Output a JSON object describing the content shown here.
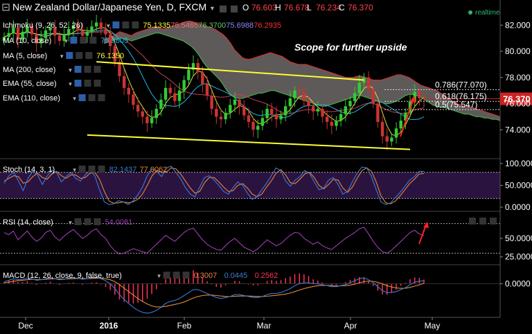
{
  "header": {
    "title": "New Zealand Dollar/Japanese Yen, D, FXCM",
    "o_label": "O",
    "o": "76.603",
    "h_label": "H",
    "h": "76.678",
    "l_label": "L",
    "l": "76.234",
    "c_label": "C",
    "c": "76.370",
    "realtime": "realtime"
  },
  "indicators": [
    {
      "label": "Ichimoku (9, 26, 52, 26)",
      "values": [
        "75.1335",
        "75.5465",
        "76.3700",
        "75.6988",
        "76.2935"
      ],
      "colors": [
        "#ffff44",
        "#ff6b6b",
        "#66cc66",
        "#8888ff",
        "#ff3333"
      ]
    },
    {
      "label": "MA (10, close)",
      "values": [
        "75.3805"
      ],
      "colors": [
        "#22b8e6"
      ]
    },
    {
      "label": "MA (5, close)",
      "values": [
        "76.1350"
      ],
      "colors": [
        "#ffff44"
      ]
    },
    {
      "label": "MA (200, close)",
      "values": [],
      "colors": []
    },
    {
      "label": "EMA (55, close)",
      "values": [],
      "colors": []
    },
    {
      "label": "EMA (110, close)",
      "values": [],
      "colors": []
    }
  ],
  "annotation": "Scope for further upside",
  "fib_levels": [
    {
      "label": "0.786(77.070)",
      "value": 77.07
    },
    {
      "label": "0.618(76.175)",
      "value": 76.175
    },
    {
      "label": "0.5(75.547)",
      "value": 75.547
    }
  ],
  "price_tag": "76.370",
  "panels": {
    "stoch": {
      "label": "Stoch (14, 3, 1)",
      "values": [
        "82.1437",
        "77.0062"
      ],
      "colors": [
        "#3a7bd5",
        "#e8883a"
      ]
    },
    "rsi": {
      "label": "RSI (14, close)",
      "values": [
        "54.0081"
      ],
      "colors": [
        "#9b3fb5"
      ]
    },
    "macd": {
      "label": "MACD (12, 26, close, 9, false, true)",
      "values": [
        "0.3007",
        "0.0445",
        "0.2562"
      ],
      "colors": [
        "#e8883a",
        "#3a7bd5",
        "#ff3355"
      ]
    }
  },
  "colors": {
    "up": "#33cc33",
    "down": "#cc3333",
    "cloud": "#6f6a6a",
    "trend": "#ffff33",
    "arrow": "#ff2222",
    "axis_text": "#ffffff"
  },
  "chart_data": [
    {
      "type": "candlestick",
      "title": "New Zealand Dollar/Japanese Yen, D, FXCM",
      "ylim": [
        72.0,
        83.5
      ],
      "y_ticks": [
        "82.000",
        "80.000",
        "78.000",
        "76.000",
        "74.000"
      ],
      "x_ticks": [
        "Dec",
        "2016",
        "Feb",
        "Mar",
        "Apr",
        "May"
      ],
      "close": [
        81.1,
        81.4,
        81.8,
        80.9,
        81.5,
        81.9,
        81.3,
        80.6,
        81.0,
        81.6,
        81.8,
        81.2,
        80.8,
        81.3,
        81.7,
        82.0,
        81.6,
        81.2,
        81.5,
        81.9,
        82.2,
        81.7,
        81.3,
        80.4,
        79.2,
        78.1,
        77.2,
        76.7,
        75.9,
        75.4,
        75.0,
        74.5,
        74.9,
        75.6,
        76.3,
        77.2,
        76.8,
        76.2,
        77.0,
        77.8,
        78.6,
        79.1,
        78.4,
        77.5,
        76.6,
        75.6,
        75.0,
        74.8,
        75.3,
        75.9,
        76.3,
        75.8,
        75.1,
        74.6,
        74.0,
        74.3,
        74.9,
        75.6,
        75.2,
        74.8,
        75.1,
        75.8,
        76.4,
        77.0,
        76.9,
        76.2,
        75.8,
        75.4,
        75.6,
        75.0,
        74.6,
        74.3,
        74.7,
        75.2,
        75.8,
        76.2,
        76.8,
        77.6,
        78.0,
        77.1,
        76.0,
        74.6,
        73.5,
        73.1,
        73.4,
        74.1,
        74.7,
        75.3,
        76.2,
        76.9,
        76.4,
        76.37
      ],
      "spans": {
        "cloud_upper": [
          80.9,
          81.0,
          81.1,
          81.3,
          81.5,
          81.4,
          81.3,
          81.2,
          81.4,
          81.5,
          81.6,
          81.7,
          81.8,
          81.9,
          81.8,
          81.7,
          81.8,
          81.9,
          82.0,
          82.1,
          82.2,
          82.3,
          82.3,
          82.2,
          82.1,
          82.0,
          81.9,
          81.8,
          81.7,
          81.5,
          81.3,
          81.0,
          80.6,
          80.1,
          79.8,
          79.5,
          79.4,
          79.4,
          79.5,
          79.6,
          79.7,
          79.8,
          79.9,
          79.8,
          79.7,
          79.6,
          79.4,
          79.2,
          79.1,
          79.0,
          79.0,
          79.0,
          78.9,
          78.8,
          78.7,
          78.6,
          78.5,
          78.4,
          78.3,
          78.2,
          78.1,
          78.0,
          78.0,
          78.0,
          78.1,
          78.1,
          78.0,
          77.9,
          77.8,
          77.8,
          77.8,
          77.9,
          78.0,
          78.1,
          78.2,
          78.2,
          78.1,
          78.0,
          77.8,
          77.6,
          77.4,
          77.3,
          77.2,
          77.1,
          77.0,
          76.8,
          76.6,
          76.4,
          76.2,
          76.0,
          75.9,
          75.8,
          75.8,
          75.7,
          75.6,
          75.5,
          75.4,
          75.3,
          75.2,
          75.1,
          75.0
        ],
        "cloud_lower": [
          80.6,
          80.7,
          80.8,
          80.9,
          81.0,
          81.0,
          80.9,
          80.8,
          80.9,
          81.0,
          81.1,
          81.2,
          81.3,
          81.4,
          81.4,
          81.3,
          81.2,
          81.1,
          81.0,
          80.9,
          80.8,
          80.6,
          80.4,
          80.1,
          79.7,
          79.2,
          78.8,
          78.5,
          78.2,
          77.9,
          77.5,
          77.0,
          76.7,
          76.5,
          76.4,
          76.4,
          76.5,
          76.6,
          76.7,
          76.8,
          76.8,
          76.9,
          77.0,
          77.0,
          76.9,
          76.8,
          76.7,
          76.6,
          76.5,
          76.4,
          76.3,
          76.2,
          76.1,
          76.0,
          75.9,
          75.8,
          75.8,
          75.9,
          76.0,
          76.1,
          76.2,
          76.3,
          76.4,
          76.5,
          76.6,
          76.6,
          76.5,
          76.4,
          76.3,
          76.2,
          76.1,
          76.0,
          76.0,
          76.1,
          76.2,
          76.4,
          76.6,
          76.7,
          76.7,
          76.6,
          76.5,
          76.3,
          76.1,
          75.9,
          75.8,
          75.7,
          75.7,
          75.6,
          75.5,
          75.4,
          75.3,
          75.2,
          75.2,
          75.1,
          75.0,
          75.0,
          74.9,
          74.9,
          74.8,
          74.8,
          74.7
        ]
      },
      "trendlines": [
        {
          "from": [
            20,
            79.2
          ],
          "to": [
            78,
            77.8
          ]
        },
        {
          "from": [
            18,
            73.6
          ],
          "to": [
            88,
            72.5
          ]
        }
      ],
      "fib_levels": [
        77.07,
        76.175,
        75.547
      ],
      "last_close": 76.37
    },
    {
      "type": "line",
      "title": "Stoch (14, 3, 1)",
      "ylim": [
        0,
        100
      ],
      "y_ticks": [
        "100.000",
        "50.0000",
        "0.0000"
      ],
      "series": [
        {
          "name": "%K",
          "values": [
            55,
            72,
            80,
            60,
            38,
            66,
            82,
            74,
            52,
            71,
            85,
            79,
            58,
            70,
            80,
            66,
            60,
            74,
            85,
            72,
            40,
            12,
            6,
            8,
            15,
            12,
            6,
            14,
            28,
            46,
            72,
            88,
            82,
            70,
            90,
            94,
            80,
            65,
            45,
            30,
            24,
            46,
            68,
            72,
            62,
            50,
            36,
            30,
            45,
            58,
            50,
            32,
            18,
            24,
            40,
            55,
            72,
            90,
            84,
            60,
            48,
            62,
            70,
            84,
            78,
            58,
            40,
            44,
            62,
            68,
            52,
            30,
            36,
            58,
            78,
            92,
            90,
            70,
            40,
            12,
            6,
            10,
            22,
            34,
            48,
            62,
            70,
            82,
            82
          ]
        },
        {
          "name": "%D",
          "values": [
            60,
            66,
            72,
            70,
            55,
            58,
            70,
            78,
            68,
            64,
            76,
            82,
            72,
            66,
            74,
            74,
            66,
            68,
            78,
            80,
            64,
            36,
            14,
            9,
            10,
            12,
            10,
            12,
            18,
            30,
            50,
            72,
            84,
            80,
            80,
            90,
            88,
            76,
            60,
            44,
            32,
            36,
            56,
            68,
            68,
            58,
            46,
            36,
            38,
            50,
            54,
            44,
            30,
            24,
            30,
            46,
            60,
            78,
            86,
            74,
            56,
            54,
            64,
            76,
            80,
            68,
            50,
            42,
            52,
            64,
            62,
            44,
            34,
            46,
            66,
            84,
            90,
            82,
            58,
            26,
            10,
            8,
            14,
            26,
            40,
            54,
            64,
            76,
            77
          ]
        }
      ],
      "guides": [
        80,
        20
      ]
    },
    {
      "type": "line",
      "title": "RSI (14, close)",
      "ylim": [
        20,
        80
      ],
      "y_ticks": [
        "50.0000",
        "25.0000"
      ],
      "series": [
        {
          "name": "RSI",
          "values": [
            58,
            55,
            60,
            48,
            54,
            60,
            52,
            46,
            50,
            58,
            61,
            52,
            47,
            53,
            58,
            62,
            56,
            50,
            54,
            60,
            63,
            55,
            50,
            40,
            33,
            29,
            30,
            33,
            36,
            34,
            32,
            30,
            36,
            42,
            48,
            54,
            50,
            46,
            52,
            58,
            62,
            64,
            56,
            48,
            42,
            38,
            35,
            34,
            40,
            46,
            50,
            44,
            38,
            35,
            32,
            36,
            42,
            48,
            44,
            40,
            43,
            49,
            54,
            58,
            57,
            50,
            46,
            42,
            45,
            40,
            37,
            35,
            40,
            45,
            50,
            54,
            58,
            63,
            65,
            56,
            46,
            38,
            32,
            30,
            34,
            40,
            46,
            52,
            58,
            61,
            56,
            54
          ]
        }
      ],
      "guides": [
        70,
        30
      ]
    },
    {
      "type": "line",
      "title": "MACD (12, 26, close, 9, false, true)",
      "ylim": [
        -3.2,
        1.5
      ],
      "y_ticks": [
        "0.0000"
      ],
      "series": [
        {
          "name": "MACD",
          "values": [
            0.2,
            0.35,
            0.5,
            0.4,
            0.45,
            0.55,
            0.5,
            0.35,
            0.4,
            0.5,
            0.6,
            0.5,
            0.4,
            0.45,
            0.55,
            0.6,
            0.55,
            0.45,
            0.5,
            0.6,
            0.65,
            0.5,
            0.3,
            0.0,
            -0.5,
            -1.1,
            -1.6,
            -2.0,
            -2.4,
            -2.7,
            -2.9,
            -3.0,
            -2.9,
            -2.7,
            -2.4,
            -2.0,
            -1.8,
            -1.7,
            -1.5,
            -1.2,
            -0.9,
            -0.6,
            -0.6,
            -0.8,
            -1.0,
            -1.2,
            -1.4,
            -1.5,
            -1.4,
            -1.3,
            -1.1,
            -1.1,
            -1.2,
            -1.3,
            -1.4,
            -1.4,
            -1.3,
            -1.1,
            -1.0,
            -1.0,
            -0.9,
            -0.7,
            -0.5,
            -0.2,
            0.0,
            0.1,
            0.1,
            0.0,
            0.0,
            -0.1,
            -0.2,
            -0.3,
            -0.3,
            -0.2,
            -0.1,
            0.1,
            0.3,
            0.5,
            0.6,
            0.4,
            0.1,
            -0.3,
            -0.7,
            -0.9,
            -0.9,
            -0.8,
            -0.6,
            -0.4,
            -0.1,
            0.15,
            0.25,
            0.3
          ]
        },
        {
          "name": "Signal",
          "values": [
            0.1,
            0.15,
            0.25,
            0.3,
            0.35,
            0.4,
            0.45,
            0.43,
            0.42,
            0.44,
            0.48,
            0.5,
            0.48,
            0.47,
            0.49,
            0.52,
            0.53,
            0.52,
            0.51,
            0.53,
            0.56,
            0.55,
            0.5,
            0.4,
            0.2,
            -0.1,
            -0.45,
            -0.8,
            -1.15,
            -1.5,
            -1.8,
            -2.05,
            -2.25,
            -2.35,
            -2.35,
            -2.3,
            -2.2,
            -2.1,
            -2.0,
            -1.85,
            -1.65,
            -1.45,
            -1.3,
            -1.2,
            -1.15,
            -1.15,
            -1.2,
            -1.25,
            -1.3,
            -1.3,
            -1.28,
            -1.25,
            -1.24,
            -1.25,
            -1.28,
            -1.3,
            -1.3,
            -1.27,
            -1.22,
            -1.18,
            -1.12,
            -1.05,
            -0.95,
            -0.8,
            -0.65,
            -0.5,
            -0.38,
            -0.28,
            -0.2,
            -0.18,
            -0.18,
            -0.2,
            -0.22,
            -0.22,
            -0.2,
            -0.14,
            -0.05,
            0.08,
            0.2,
            0.26,
            0.24,
            0.14,
            -0.02,
            -0.2,
            -0.34,
            -0.43,
            -0.47,
            -0.46,
            -0.38,
            -0.25,
            -0.12,
            0.04
          ]
        }
      ]
    }
  ]
}
